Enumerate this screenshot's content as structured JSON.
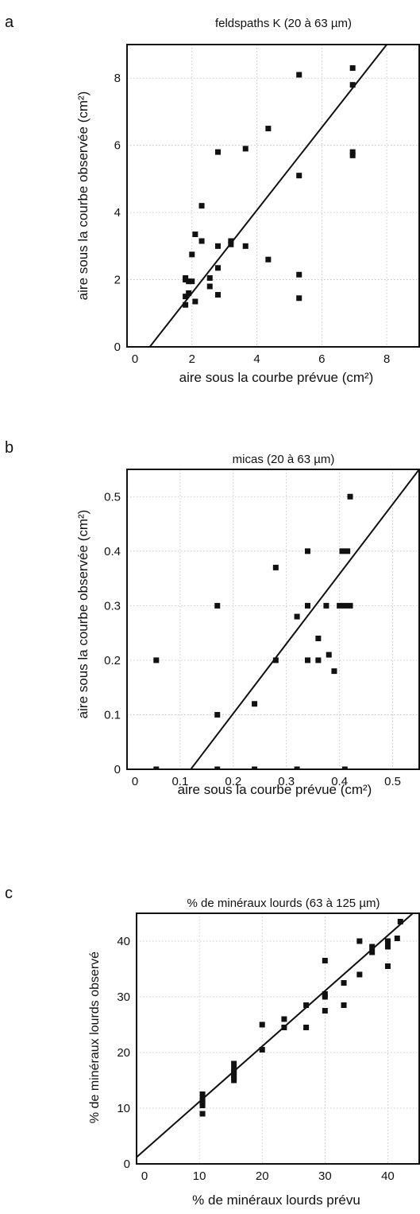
{
  "charts": [
    {
      "letter": "a",
      "chart_data": {
        "type": "scatter",
        "title": "feldspaths K (20 à 63 µm)",
        "xlabel": "aire sous la courbe prévue (cm²)",
        "ylabel": "aire sous la courbe observée (cm²)",
        "xlim": [
          0,
          9
        ],
        "ylim": [
          0,
          9
        ],
        "xticks": [
          0,
          2,
          4,
          6,
          8
        ],
        "yticks": [
          0,
          2,
          4,
          6,
          8
        ],
        "tick_labels_x": [
          "0",
          "2",
          "4",
          "6",
          "8"
        ],
        "tick_labels_y": [
          "0",
          "2",
          "4",
          "6",
          "8"
        ],
        "grid": true,
        "points": [
          [
            1.8,
            1.25
          ],
          [
            1.8,
            1.5
          ],
          [
            1.8,
            2.0
          ],
          [
            1.8,
            2.05
          ],
          [
            1.9,
            1.6
          ],
          [
            1.9,
            1.95
          ],
          [
            2.0,
            1.95
          ],
          [
            2.0,
            2.75
          ],
          [
            2.1,
            1.35
          ],
          [
            2.1,
            3.35
          ],
          [
            2.3,
            3.15
          ],
          [
            2.3,
            4.2
          ],
          [
            2.55,
            1.8
          ],
          [
            2.55,
            2.05
          ],
          [
            2.8,
            1.55
          ],
          [
            2.8,
            2.35
          ],
          [
            2.8,
            3.0
          ],
          [
            2.8,
            5.8
          ],
          [
            3.2,
            3.05
          ],
          [
            3.2,
            3.15
          ],
          [
            3.65,
            3.0
          ],
          [
            3.65,
            5.9
          ],
          [
            4.35,
            2.6
          ],
          [
            4.35,
            6.5
          ],
          [
            5.3,
            1.45
          ],
          [
            5.3,
            2.15
          ],
          [
            5.3,
            5.1
          ],
          [
            5.3,
            8.1
          ],
          [
            6.95,
            5.7
          ],
          [
            6.95,
            5.8
          ],
          [
            6.95,
            7.8
          ],
          [
            6.95,
            8.3
          ]
        ],
        "fit_line": [
          [
            0.7,
            0
          ],
          [
            8.0,
            9
          ]
        ]
      }
    },
    {
      "letter": "b",
      "chart_data": {
        "type": "scatter",
        "title": "micas (20 à 63 µm)",
        "xlabel": "aire sous la courbe prévue (cm²)",
        "ylabel": "aire sous la courbe observée (cm²)",
        "xlim": [
          0,
          0.55
        ],
        "ylim": [
          0,
          0.55
        ],
        "xticks": [
          0,
          0.1,
          0.2,
          0.3,
          0.4,
          0.5
        ],
        "yticks": [
          0,
          0.1,
          0.2,
          0.3,
          0.4,
          0.5
        ],
        "tick_labels_x": [
          "0",
          "0.1",
          "0.2",
          "0.3",
          "0.4",
          "0.5"
        ],
        "tick_labels_y": [
          "0",
          "0.1",
          "0.2",
          "0.3",
          "0.4",
          "0.5"
        ],
        "grid": true,
        "points": [
          [
            0.055,
            0.2
          ],
          [
            0.055,
            0.0
          ],
          [
            0.17,
            0.3
          ],
          [
            0.17,
            0.1
          ],
          [
            0.17,
            0.0
          ],
          [
            0.24,
            0.12
          ],
          [
            0.24,
            0.0
          ],
          [
            0.28,
            0.37
          ],
          [
            0.28,
            0.2
          ],
          [
            0.32,
            0.28
          ],
          [
            0.32,
            0.0
          ],
          [
            0.34,
            0.4
          ],
          [
            0.34,
            0.3
          ],
          [
            0.34,
            0.2
          ],
          [
            0.36,
            0.24
          ],
          [
            0.36,
            0.2
          ],
          [
            0.375,
            0.3
          ],
          [
            0.38,
            0.21
          ],
          [
            0.39,
            0.18
          ],
          [
            0.4,
            0.3
          ],
          [
            0.405,
            0.4
          ],
          [
            0.41,
            0.3
          ],
          [
            0.41,
            0.0
          ],
          [
            0.415,
            0.4
          ],
          [
            0.42,
            0.3
          ],
          [
            0.42,
            0.5
          ]
        ],
        "fit_line": [
          [
            0.12,
            0
          ],
          [
            0.55,
            0.55
          ]
        ]
      }
    },
    {
      "letter": "c",
      "chart_data": {
        "type": "scatter",
        "title": "% de minéraux lourds (63 à 125 µm)",
        "xlabel": "% de minéraux lourds prévu",
        "ylabel": "% de minéraux lourds observé",
        "xlim": [
          0,
          45
        ],
        "ylim": [
          0,
          45
        ],
        "xticks": [
          0,
          10,
          20,
          30,
          40
        ],
        "yticks": [
          0,
          10,
          20,
          30,
          40
        ],
        "tick_labels_x": [
          "0",
          "10",
          "20",
          "30",
          "40"
        ],
        "tick_labels_y": [
          "0",
          "10",
          "20",
          "30",
          "40"
        ],
        "grid": true,
        "points": [
          [
            10.5,
            9.0
          ],
          [
            10.5,
            10.5
          ],
          [
            10.5,
            11.0
          ],
          [
            10.5,
            11.5
          ],
          [
            10.5,
            12.5
          ],
          [
            15.5,
            15.0
          ],
          [
            15.5,
            15.5
          ],
          [
            15.5,
            16.0
          ],
          [
            15.5,
            16.5
          ],
          [
            15.5,
            17.0
          ],
          [
            15.5,
            18.0
          ],
          [
            20,
            20.5
          ],
          [
            20,
            25.0
          ],
          [
            23.5,
            24.5
          ],
          [
            23.5,
            26.0
          ],
          [
            27,
            24.5
          ],
          [
            27,
            28.5
          ],
          [
            30,
            27.5
          ],
          [
            30,
            30.0
          ],
          [
            30,
            30.5
          ],
          [
            30,
            36.5
          ],
          [
            33,
            28.5
          ],
          [
            33,
            32.5
          ],
          [
            35.5,
            34.0
          ],
          [
            35.5,
            40.0
          ],
          [
            37.5,
            38.0
          ],
          [
            37.5,
            39.0
          ],
          [
            40,
            35.5
          ],
          [
            40,
            39.0
          ],
          [
            40,
            40.0
          ],
          [
            41.5,
            40.5
          ],
          [
            42,
            43.5
          ]
        ],
        "fit_line": [
          [
            0,
            1.2
          ],
          [
            45,
            46
          ]
        ]
      }
    }
  ]
}
